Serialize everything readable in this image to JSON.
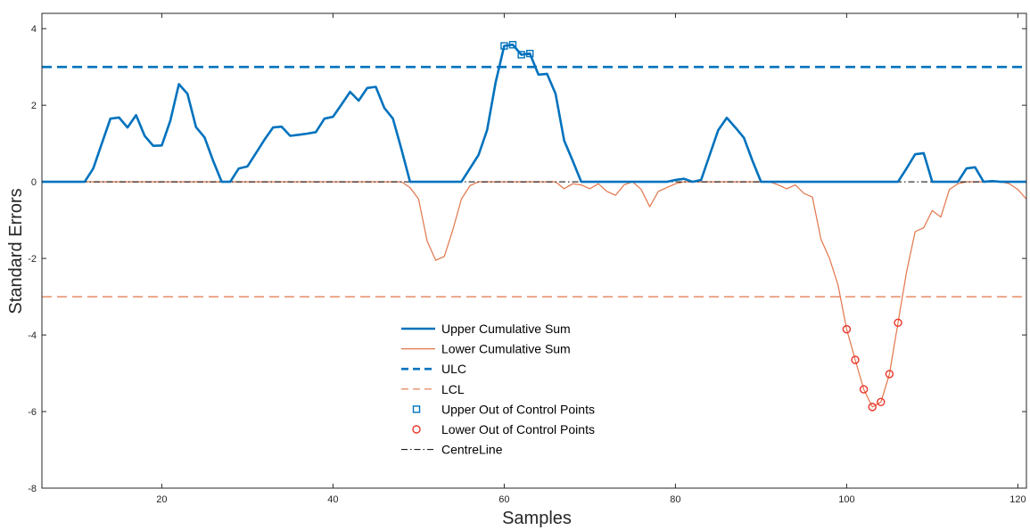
{
  "chart_data": {
    "type": "line",
    "title": "",
    "xlabel": "Samples",
    "ylabel": "Standard Errors",
    "xlim": [
      6,
      121
    ],
    "ylim": [
      -8,
      4.4
    ],
    "xticks": [
      20,
      40,
      60,
      80,
      100,
      120
    ],
    "yticks": [
      -8,
      -6,
      -4,
      -2,
      0,
      2,
      4
    ],
    "grid": false,
    "legend_position": "center",
    "series": [
      {
        "name": "Upper Cumulative Sum",
        "style": "solid",
        "color": "#0072BD",
        "x": [
          6,
          7,
          8,
          9,
          10,
          11,
          12,
          13,
          14,
          15,
          16,
          17,
          18,
          19,
          20,
          21,
          22,
          23,
          24,
          25,
          26,
          27,
          28,
          29,
          30,
          31,
          32,
          33,
          34,
          35,
          36,
          37,
          38,
          39,
          40,
          41,
          42,
          43,
          44,
          45,
          46,
          47,
          48,
          49,
          50,
          51,
          52,
          53,
          54,
          55,
          56,
          57,
          58,
          59,
          60,
          61,
          62,
          63,
          64,
          65,
          66,
          67,
          68,
          69,
          70,
          71,
          72,
          73,
          74,
          75,
          76,
          77,
          78,
          79,
          80,
          81,
          82,
          83,
          84,
          85,
          86,
          87,
          88,
          89,
          90,
          91,
          92,
          93,
          94,
          95,
          96,
          97,
          98,
          99,
          100,
          101,
          102,
          103,
          104,
          105,
          106,
          107,
          108,
          109,
          110,
          111,
          112,
          113,
          114,
          115,
          116,
          117,
          118,
          119,
          120,
          121
        ],
        "y": [
          0,
          0,
          0,
          0,
          0,
          0,
          0.35,
          1,
          1.65,
          1.68,
          1.42,
          1.74,
          1.2,
          0.94,
          0.95,
          1.6,
          2.55,
          2.3,
          1.43,
          1.16,
          0.55,
          0,
          0,
          0.35,
          0.4,
          0.75,
          1.1,
          1.42,
          1.44,
          1.2,
          1.23,
          1.26,
          1.3,
          1.65,
          1.7,
          2.02,
          2.35,
          2.12,
          2.45,
          2.48,
          1.93,
          1.65,
          0.85,
          0,
          0,
          0,
          0,
          0,
          0,
          0,
          0.35,
          0.7,
          1.35,
          2.6,
          3.55,
          3.58,
          3.32,
          3.35,
          2.8,
          2.82,
          2.3,
          1.08,
          0.55,
          0,
          0,
          0,
          0,
          0,
          0,
          0,
          0,
          0,
          0,
          0,
          0.05,
          0.08,
          0,
          0.05,
          0.7,
          1.35,
          1.67,
          1.42,
          1.15,
          0.55,
          0,
          0,
          0,
          0,
          0,
          0,
          0,
          0,
          0,
          0,
          0,
          0,
          0,
          0,
          0,
          0,
          0,
          0.35,
          0.72,
          0.75,
          0,
          0,
          0,
          0,
          0.35,
          0.38,
          0,
          0.02,
          0,
          0,
          0,
          0
        ],
        "width": 2.6
      },
      {
        "name": "Lower Cumulative Sum",
        "style": "solid",
        "color": "#E2754A",
        "x": [
          6,
          48,
          49,
          50,
          51,
          52,
          53,
          54,
          55,
          56,
          57,
          66,
          67,
          68,
          69,
          70,
          71,
          72,
          73,
          74,
          75,
          76,
          77,
          78,
          79,
          80,
          81,
          82,
          83,
          84,
          91,
          92,
          93,
          94,
          95,
          96,
          97,
          98,
          99,
          100,
          101,
          102,
          103,
          104,
          105,
          106,
          107,
          108,
          109,
          110,
          111,
          112,
          113,
          114,
          118,
          119,
          120,
          121
        ],
        "y": [
          0,
          0,
          -0.15,
          -0.45,
          -1.55,
          -2.05,
          -1.95,
          -1.25,
          -0.45,
          -0.1,
          0,
          0,
          -0.18,
          -0.05,
          -0.08,
          -0.18,
          -0.05,
          -0.25,
          -0.35,
          -0.08,
          0,
          -0.2,
          -0.65,
          -0.25,
          -0.15,
          -0.05,
          0,
          0,
          0,
          0,
          0,
          -0.08,
          -0.18,
          -0.08,
          -0.3,
          -0.4,
          -1.5,
          -2,
          -2.7,
          -3.85,
          -4.65,
          -5.42,
          -5.88,
          -5.75,
          -5.02,
          -3.68,
          -2.35,
          -1.3,
          -1.2,
          -0.75,
          -0.92,
          -0.2,
          -0.05,
          0,
          0,
          -0.05,
          -0.2,
          -0.45
        ],
        "width": 1.2
      },
      {
        "name": "ULC",
        "style": "dashed",
        "color": "#0072BD",
        "x": [
          6,
          121
        ],
        "y": [
          3,
          3
        ],
        "width": 2.6
      },
      {
        "name": "LCL",
        "style": "dashed",
        "color": "#E2754A",
        "x": [
          6,
          121
        ],
        "y": [
          -3,
          -3
        ],
        "width": 1.2
      },
      {
        "name": "Upper Out of Control Points",
        "style": "marker-square",
        "color": "#0072BD",
        "x": [
          60,
          61,
          62,
          63
        ],
        "y": [
          3.55,
          3.58,
          3.32,
          3.35
        ]
      },
      {
        "name": "Lower Out of Control Points",
        "style": "marker-circle",
        "color": "#E8342A",
        "x": [
          100,
          101,
          102,
          103,
          104,
          105,
          106
        ],
        "y": [
          -3.85,
          -4.65,
          -5.42,
          -5.88,
          -5.75,
          -5.02,
          -3.68
        ]
      },
      {
        "name": "CentreLine",
        "style": "dashdot",
        "color": "#000000",
        "x": [
          6,
          121
        ],
        "y": [
          0,
          0
        ],
        "width": 1
      }
    ]
  }
}
